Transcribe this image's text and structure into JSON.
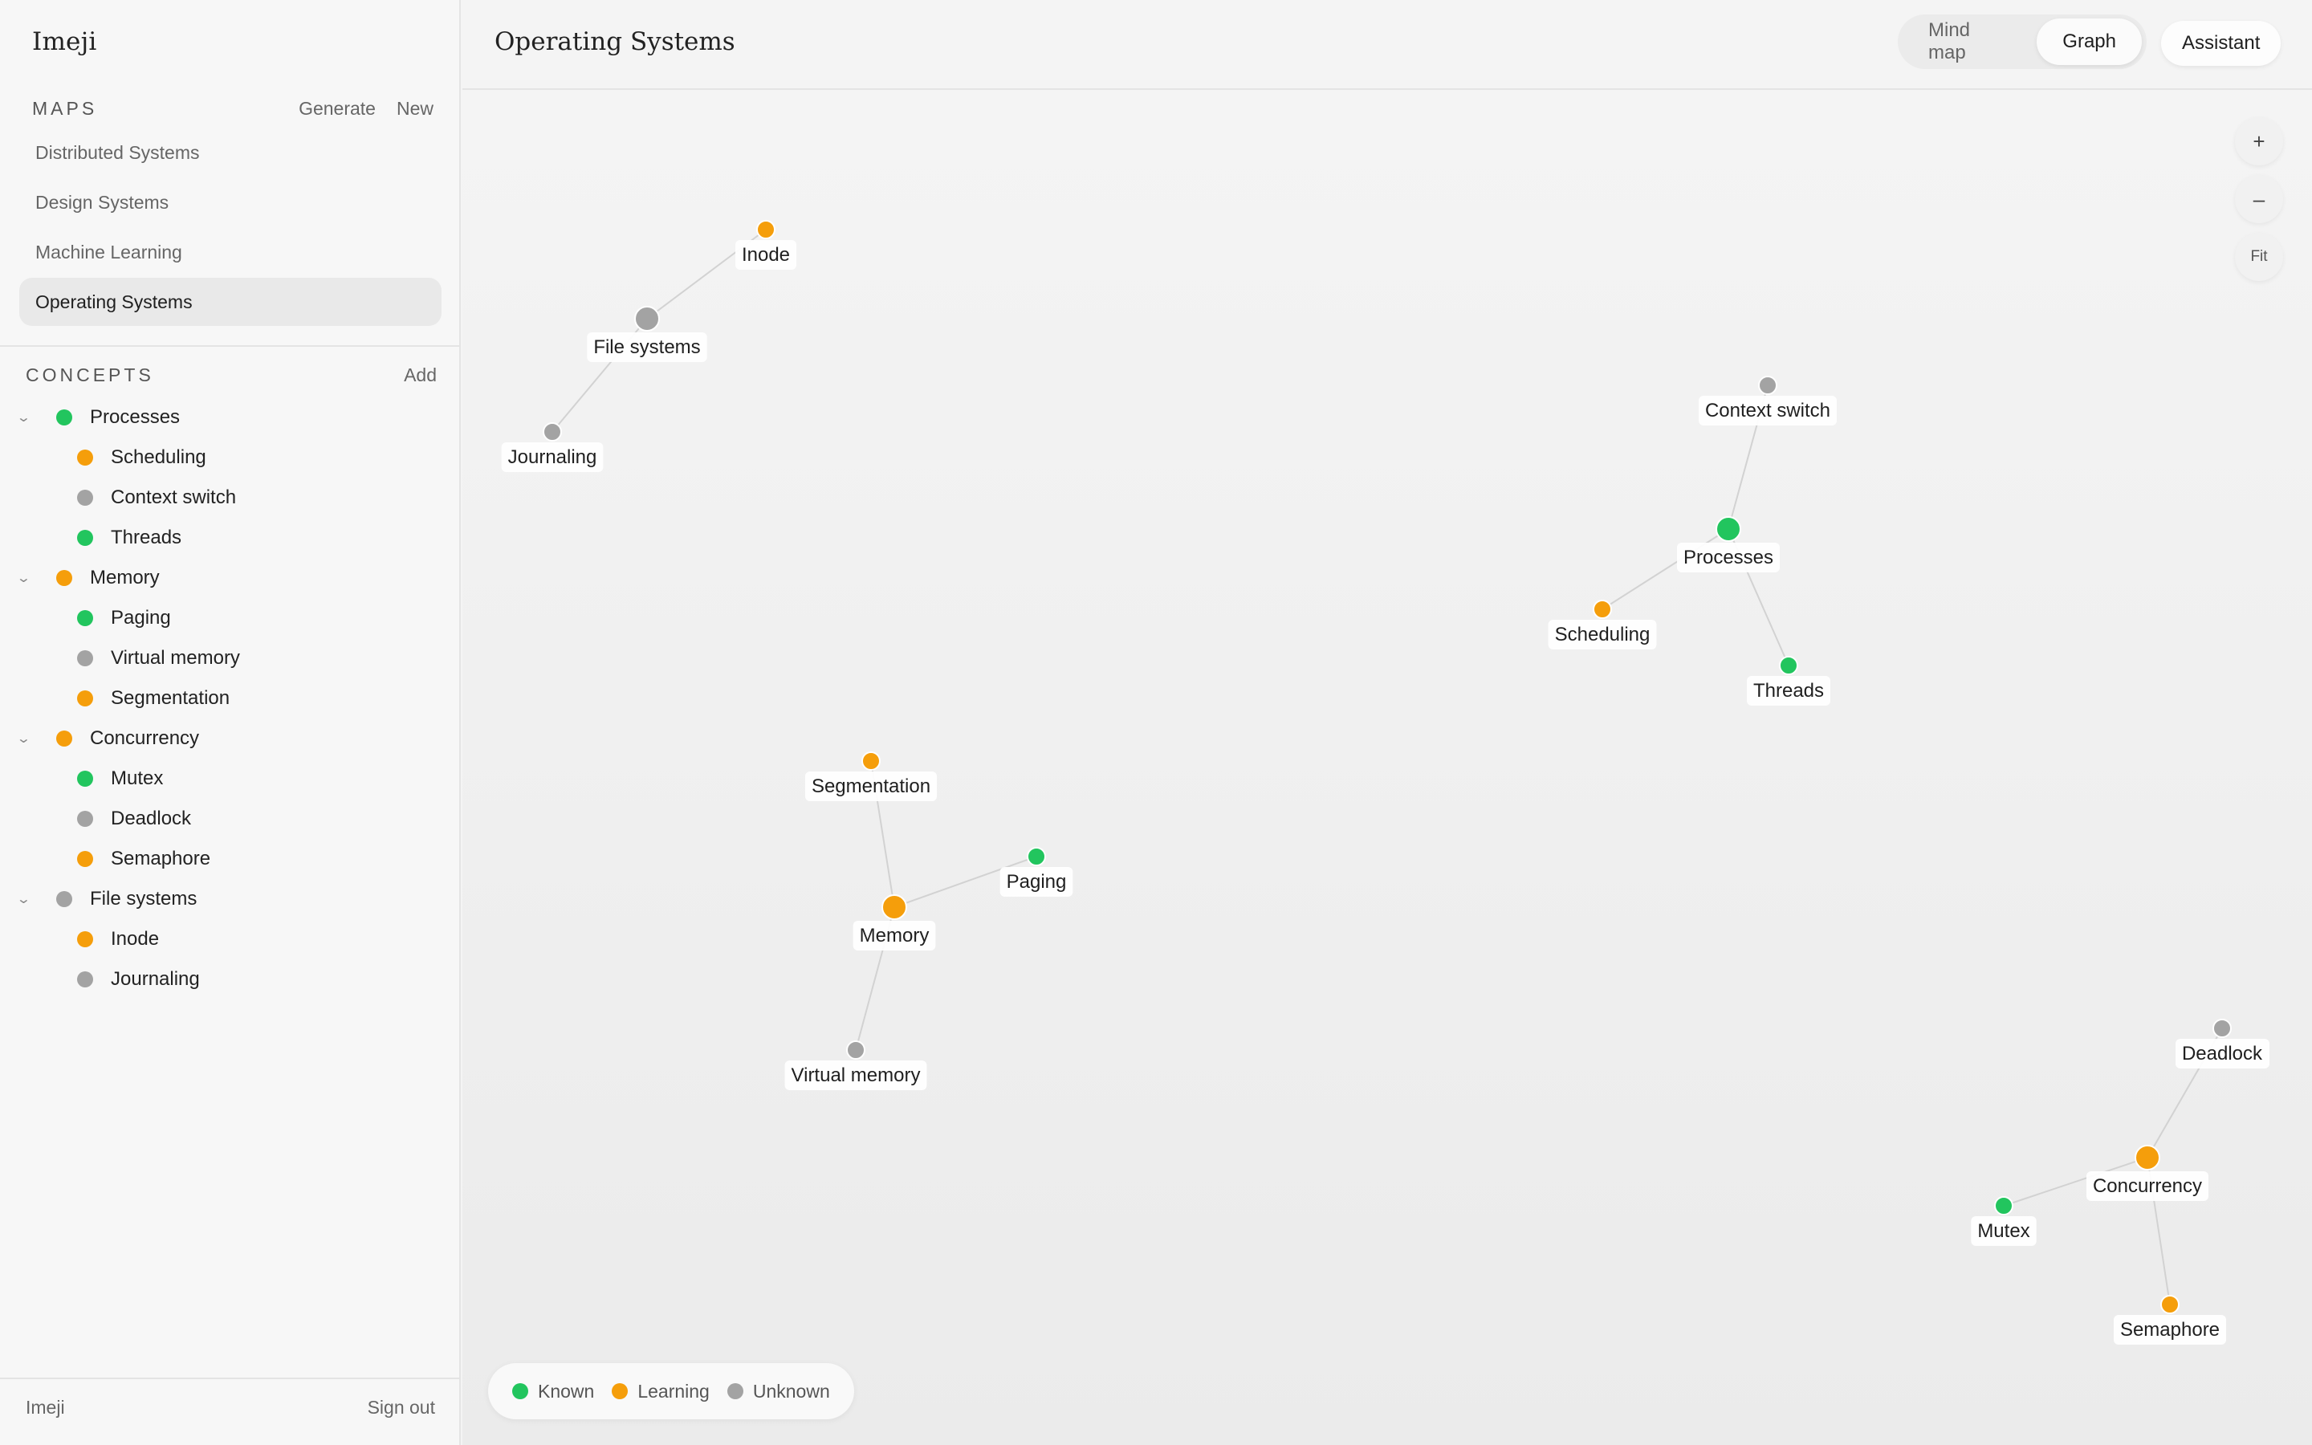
{
  "app": {
    "name": "Imeji"
  },
  "colors": {
    "known": "#22c55e",
    "learning": "#f59e0b",
    "unknown": "#a3a3a3",
    "edge": "#d2d2d2"
  },
  "sidebar": {
    "maps_title": "MAPS",
    "generate_label": "Generate",
    "new_label": "New",
    "maps": [
      {
        "label": "Distributed Systems",
        "active": false
      },
      {
        "label": "Design Systems",
        "active": false
      },
      {
        "label": "Machine Learning",
        "active": false
      },
      {
        "label": "Operating Systems",
        "active": true
      }
    ],
    "concepts_title": "CONCEPTS",
    "add_label": "Add",
    "concepts": [
      {
        "label": "Processes",
        "status": "known",
        "children": [
          {
            "label": "Scheduling",
            "status": "learning"
          },
          {
            "label": "Context switch",
            "status": "unknown"
          },
          {
            "label": "Threads",
            "status": "known"
          }
        ]
      },
      {
        "label": "Memory",
        "status": "learning",
        "children": [
          {
            "label": "Paging",
            "status": "known"
          },
          {
            "label": "Virtual memory",
            "status": "unknown"
          },
          {
            "label": "Segmentation",
            "status": "learning"
          }
        ]
      },
      {
        "label": "Concurrency",
        "status": "learning",
        "children": [
          {
            "label": "Mutex",
            "status": "known"
          },
          {
            "label": "Deadlock",
            "status": "unknown"
          },
          {
            "label": "Semaphore",
            "status": "learning"
          }
        ]
      },
      {
        "label": "File systems",
        "status": "unknown",
        "children": [
          {
            "label": "Inode",
            "status": "learning"
          },
          {
            "label": "Journaling",
            "status": "unknown"
          }
        ]
      }
    ],
    "footer": {
      "app_label": "Imeji",
      "sign_out_label": "Sign out"
    }
  },
  "header": {
    "title": "Operating Systems",
    "view_modes": [
      {
        "label": "Mind map",
        "active": false
      },
      {
        "label": "Graph",
        "active": true
      }
    ],
    "assistant_label": "Assistant"
  },
  "canvas": {
    "zoom_in_icon": "plus-icon",
    "zoom_out_icon": "minus-icon",
    "fit_label": "Fit",
    "legend": [
      {
        "label": "Known",
        "status": "known"
      },
      {
        "label": "Learning",
        "status": "learning"
      },
      {
        "label": "Unknown",
        "status": "unknown"
      }
    ],
    "graph": {
      "nodes": [
        {
          "id": "inode",
          "label": "Inode",
          "status": "learning",
          "parent": false
        },
        {
          "id": "filesystems",
          "label": "File systems",
          "status": "unknown",
          "parent": true
        },
        {
          "id": "journaling",
          "label": "Journaling",
          "status": "unknown",
          "parent": false
        },
        {
          "id": "contextswitch",
          "label": "Context switch",
          "status": "unknown",
          "parent": false
        },
        {
          "id": "processes",
          "label": "Processes",
          "status": "known",
          "parent": true
        },
        {
          "id": "scheduling",
          "label": "Scheduling",
          "status": "learning",
          "parent": false
        },
        {
          "id": "threads",
          "label": "Threads",
          "status": "known",
          "parent": false
        },
        {
          "id": "segmentation",
          "label": "Segmentation",
          "status": "learning",
          "parent": false
        },
        {
          "id": "paging",
          "label": "Paging",
          "status": "known",
          "parent": false
        },
        {
          "id": "memory",
          "label": "Memory",
          "status": "learning",
          "parent": true
        },
        {
          "id": "virtualmemory",
          "label": "Virtual memory",
          "status": "unknown",
          "parent": false
        },
        {
          "id": "deadlock",
          "label": "Deadlock",
          "status": "unknown",
          "parent": false
        },
        {
          "id": "concurrency",
          "label": "Concurrency",
          "status": "learning",
          "parent": true
        },
        {
          "id": "mutex",
          "label": "Mutex",
          "status": "known",
          "parent": false
        },
        {
          "id": "semaphore",
          "label": "Semaphore",
          "status": "learning",
          "parent": false
        }
      ],
      "edges": [
        [
          "filesystems",
          "inode"
        ],
        [
          "filesystems",
          "journaling"
        ],
        [
          "processes",
          "contextswitch"
        ],
        [
          "processes",
          "scheduling"
        ],
        [
          "processes",
          "threads"
        ],
        [
          "memory",
          "segmentation"
        ],
        [
          "memory",
          "paging"
        ],
        [
          "memory",
          "virtualmemory"
        ],
        [
          "concurrency",
          "deadlock"
        ],
        [
          "concurrency",
          "mutex"
        ],
        [
          "concurrency",
          "semaphore"
        ]
      ]
    }
  }
}
